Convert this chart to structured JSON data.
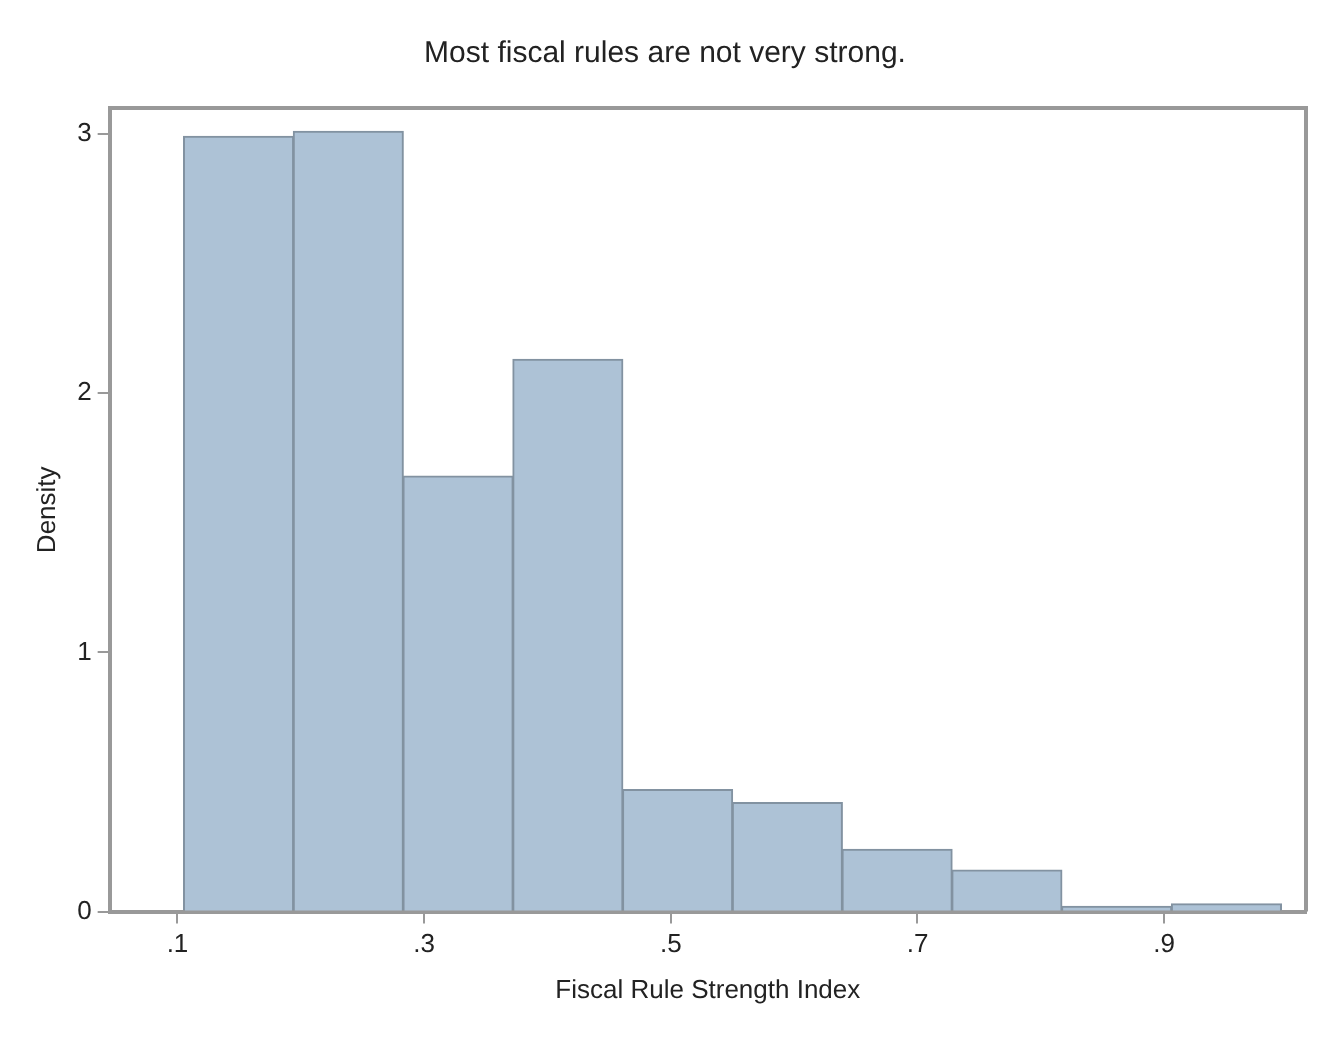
{
  "chart_data": {
    "type": "histogram",
    "title": "Most fiscal rules are not very strong.",
    "xlabel": "Fiscal Rule Strength Index",
    "ylabel": "Density",
    "bins": [
      0.105,
      0.194,
      0.283,
      0.372,
      0.461,
      0.55,
      0.639,
      0.728,
      0.817,
      0.906,
      0.995
    ],
    "values": [
      2.99,
      3.01,
      1.68,
      2.13,
      0.47,
      0.42,
      0.24,
      0.16,
      0.02,
      0.03
    ],
    "color": "#adc2d6",
    "xlim": [
      0.045,
      1.015
    ],
    "xticks": [
      {
        "value": 0.1,
        "label": ".1"
      },
      {
        "value": 0.3,
        "label": ".3"
      },
      {
        "value": 0.5,
        "label": ".5"
      },
      {
        "value": 0.7,
        "label": ".7"
      },
      {
        "value": 0.9,
        "label": ".9"
      }
    ],
    "ylim": [
      0,
      3.1
    ],
    "yticks": [
      0,
      1,
      2,
      3
    ],
    "grid": false,
    "legend": false
  }
}
